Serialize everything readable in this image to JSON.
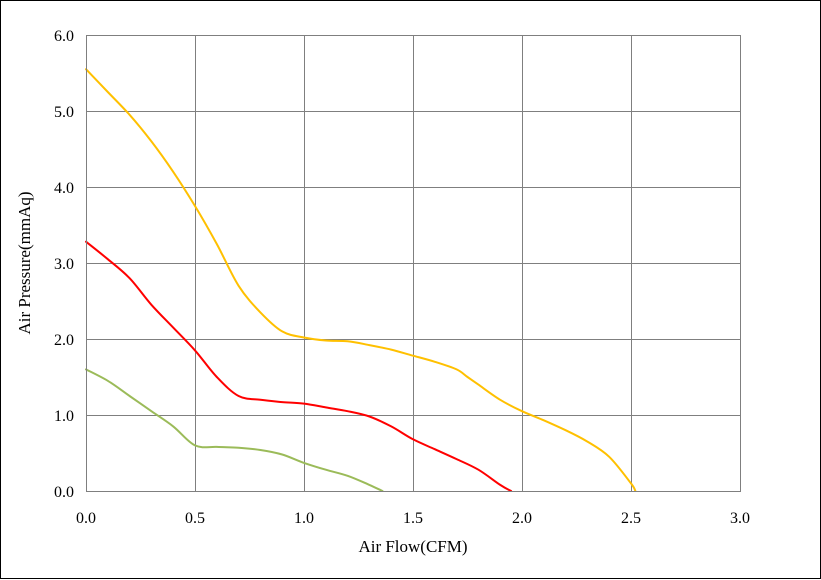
{
  "chart_data": {
    "type": "line",
    "title": "",
    "xlabel": "Air Flow(CFM)",
    "ylabel": "Air Pressure(mmAq)",
    "xlim": [
      0,
      3
    ],
    "ylim": [
      0,
      6
    ],
    "x_ticks": [
      "0.0",
      "0.5",
      "1.0",
      "1.5",
      "2.0",
      "2.5",
      "3.0"
    ],
    "y_ticks": [
      "0.0",
      "1.0",
      "2.0",
      "3.0",
      "4.0",
      "5.0",
      "6.0"
    ],
    "grid": true,
    "legend": "none",
    "series": [
      {
        "color": "#ffc000",
        "x": [
          0.0,
          0.1,
          0.2,
          0.3,
          0.4,
          0.5,
          0.6,
          0.7,
          0.8,
          0.9,
          1.0,
          1.1,
          1.2,
          1.3,
          1.4,
          1.5,
          1.6,
          1.7,
          1.75,
          1.8,
          1.9,
          2.0,
          2.1,
          2.2,
          2.3,
          2.4,
          2.5,
          2.52
        ],
        "y": [
          5.55,
          5.25,
          4.95,
          4.6,
          4.2,
          3.75,
          3.25,
          2.7,
          2.35,
          2.1,
          2.02,
          1.98,
          1.97,
          1.92,
          1.86,
          1.78,
          1.7,
          1.6,
          1.5,
          1.4,
          1.2,
          1.05,
          0.93,
          0.8,
          0.65,
          0.45,
          0.1,
          0.0
        ]
      },
      {
        "color": "#ff0000",
        "x": [
          0.0,
          0.1,
          0.2,
          0.3,
          0.4,
          0.5,
          0.6,
          0.7,
          0.8,
          0.9,
          1.0,
          1.1,
          1.2,
          1.3,
          1.4,
          1.5,
          1.6,
          1.7,
          1.8,
          1.9,
          1.95
        ],
        "y": [
          3.28,
          3.05,
          2.8,
          2.45,
          2.15,
          1.85,
          1.5,
          1.25,
          1.2,
          1.17,
          1.15,
          1.1,
          1.05,
          0.98,
          0.85,
          0.68,
          0.55,
          0.42,
          0.28,
          0.08,
          0.0
        ]
      },
      {
        "color": "#9bbb59",
        "x": [
          0.0,
          0.1,
          0.2,
          0.3,
          0.4,
          0.5,
          0.6,
          0.7,
          0.8,
          0.9,
          1.0,
          1.1,
          1.2,
          1.3,
          1.36
        ],
        "y": [
          1.6,
          1.45,
          1.25,
          1.05,
          0.85,
          0.6,
          0.58,
          0.57,
          0.54,
          0.48,
          0.37,
          0.28,
          0.2,
          0.08,
          0.0
        ]
      }
    ]
  }
}
